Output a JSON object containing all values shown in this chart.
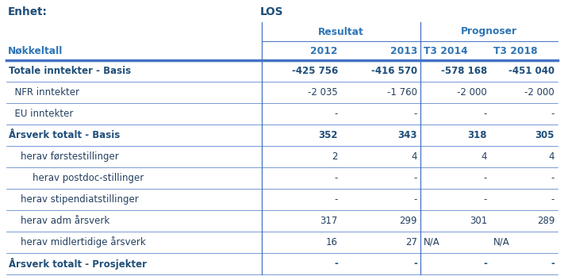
{
  "enhet_label": "Enhet:",
  "enhet_value": "LOS",
  "group1_label": "Resultat",
  "group2_label": "Prognoser",
  "col_headers": [
    "Nøkkeltall",
    "2012",
    "2013",
    "T3 2014",
    "T3 2018"
  ],
  "rows": [
    [
      "Totale inntekter - Basis",
      "-425 756",
      "-416 570",
      "-578 168",
      "-451 040"
    ],
    [
      "  NFR inntekter",
      "-2 035",
      "-1 760",
      "-2 000",
      "-2 000"
    ],
    [
      "  EU inntekter",
      "-",
      "-",
      "-",
      "-"
    ],
    [
      "Årsverk totalt - Basis",
      "352",
      "343",
      "318",
      "305"
    ],
    [
      "    herav førstestillinger",
      "2",
      "4",
      "4",
      "4"
    ],
    [
      "        herav postdoc-stillinger",
      "-",
      "-",
      "-",
      "-"
    ],
    [
      "    herav stipendiatstillinger",
      "-",
      "-",
      "-",
      "-"
    ],
    [
      "    herav adm årsverk",
      "317",
      "299",
      "301",
      "289"
    ],
    [
      "    herav midlertidige årsverk",
      "16",
      "27",
      "N/A",
      "N/A"
    ],
    [
      "Årsverk totalt - Prosjekter",
      "-",
      "-",
      "-",
      "-"
    ]
  ],
  "bold_rows": [
    0,
    3,
    9
  ],
  "header_color": "#1F4E79",
  "subheader_color": "#2E75B6",
  "text_color": "#243F60",
  "line_color": "#4472C4",
  "background_color": "#FFFFFF",
  "figsize": [
    7.11,
    3.48
  ],
  "dpi": 100,
  "font_size": 8.5,
  "header_font_size": 8.8
}
